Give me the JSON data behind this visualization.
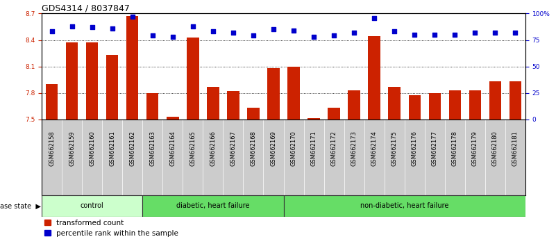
{
  "title": "GDS4314 / 8037847",
  "samples": [
    "GSM662158",
    "GSM662159",
    "GSM662160",
    "GSM662161",
    "GSM662162",
    "GSM662163",
    "GSM662164",
    "GSM662165",
    "GSM662166",
    "GSM662167",
    "GSM662168",
    "GSM662169",
    "GSM662170",
    "GSM662171",
    "GSM662172",
    "GSM662173",
    "GSM662174",
    "GSM662175",
    "GSM662176",
    "GSM662177",
    "GSM662178",
    "GSM662179",
    "GSM662180",
    "GSM662181"
  ],
  "bar_values": [
    7.9,
    8.37,
    8.37,
    8.23,
    8.67,
    7.8,
    7.53,
    8.43,
    7.87,
    7.82,
    7.63,
    8.08,
    8.1,
    7.51,
    7.63,
    7.83,
    8.44,
    7.87,
    7.77,
    7.8,
    7.83,
    7.83,
    7.93,
    7.93
  ],
  "percentile_values": [
    83,
    88,
    87,
    86,
    97,
    79,
    78,
    88,
    83,
    82,
    79,
    85,
    84,
    78,
    79,
    82,
    96,
    83,
    80,
    80,
    80,
    82,
    82,
    82
  ],
  "bar_color": "#cc2200",
  "dot_color": "#0000cc",
  "ylim_left": [
    7.5,
    8.7
  ],
  "ylim_right": [
    0,
    100
  ],
  "yticks_left": [
    7.5,
    7.8,
    8.1,
    8.4,
    8.7
  ],
  "yticks_right": [
    0,
    25,
    50,
    75,
    100
  ],
  "ytick_labels_right": [
    "0",
    "25",
    "50",
    "75",
    "100%"
  ],
  "grid_values": [
    7.8,
    8.1,
    8.4
  ],
  "bar_width": 0.6,
  "fig_width": 8.01,
  "fig_height": 3.54,
  "title_fontsize": 9,
  "tick_fontsize": 6.5,
  "sample_label_fontsize": 6.0,
  "legend_label1": "transformed count",
  "legend_label2": "percentile rank within the sample",
  "disease_state_label": "disease state",
  "control_color": "#ccffcc",
  "dhf_color": "#66dd66",
  "ndhf_color": "#66dd66",
  "label_bg_color": "#cccccc",
  "groups_info": [
    {
      "start": 0,
      "end": 4,
      "color": "#ccffcc",
      "label": "control"
    },
    {
      "start": 5,
      "end": 11,
      "color": "#66dd66",
      "label": "diabetic, heart failure"
    },
    {
      "start": 12,
      "end": 23,
      "color": "#66dd66",
      "label": "non-diabetic, heart failure"
    }
  ]
}
